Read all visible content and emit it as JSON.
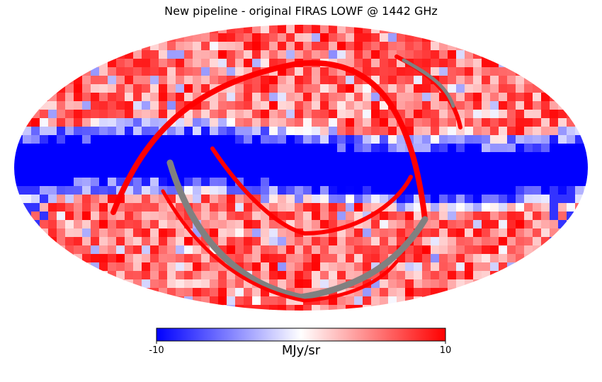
{
  "chart_data": {
    "type": "heatmap",
    "title": "New pipeline - original FIRAS LOWF @ 1442 GHz",
    "projection": "mollweide",
    "colormap": "bwr",
    "masked_color": "#808080",
    "color_min": "#0000ff",
    "color_mid": "#ffffff",
    "color_max": "#ff0000",
    "colorbar": {
      "label": "MJy/sr",
      "vmin": -10,
      "vmax": 10,
      "ticks": [
        "-10",
        "10"
      ]
    }
  }
}
